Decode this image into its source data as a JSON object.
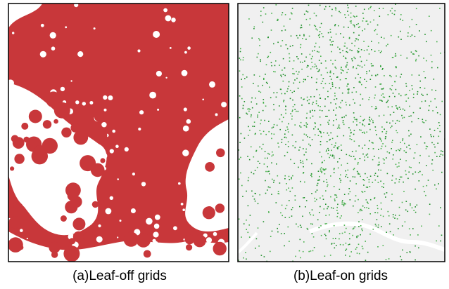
{
  "panels": [
    {
      "caption": "(a)Leaf-off grids"
    },
    {
      "caption": "(b)Leaf-on grids"
    }
  ]
}
